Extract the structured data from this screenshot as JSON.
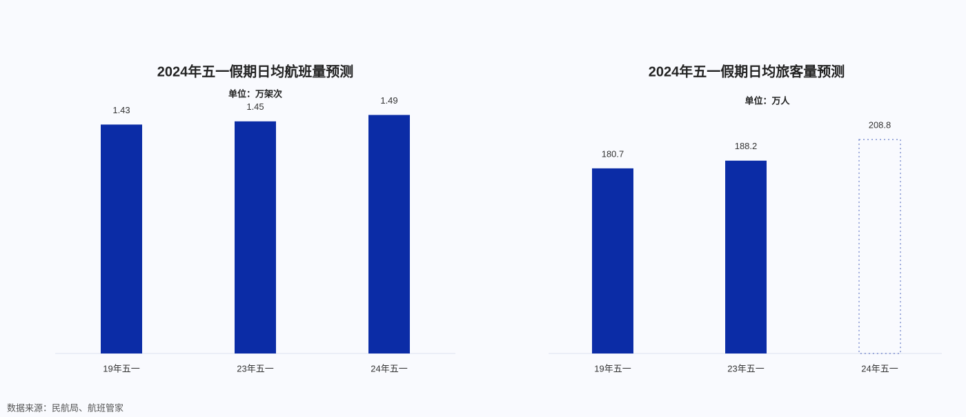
{
  "chart_data": [
    {
      "type": "bar",
      "title": "2024年五一假期日均航班量预测",
      "subtitle": "单位：万架次",
      "categories": [
        "19年五一",
        "23年五一",
        "24年五一"
      ],
      "values": [
        1.43,
        1.45,
        1.49
      ],
      "color": "#0b2ca6",
      "bar_styles": [
        "solid",
        "solid",
        "solid"
      ],
      "ylim": [
        0,
        1.6
      ]
    },
    {
      "type": "bar",
      "title": "2024年五一假期日均旅客量预测",
      "subtitle": "单位：万人",
      "categories": [
        "19年五一",
        "23年五一",
        "24年五一"
      ],
      "values": [
        180.7,
        188.2,
        208.8
      ],
      "color": "#0b2ca6",
      "bar_styles": [
        "solid",
        "solid",
        "dotted"
      ],
      "ylim": [
        0,
        250
      ]
    }
  ],
  "source": "数据来源：民航局、航班管家"
}
